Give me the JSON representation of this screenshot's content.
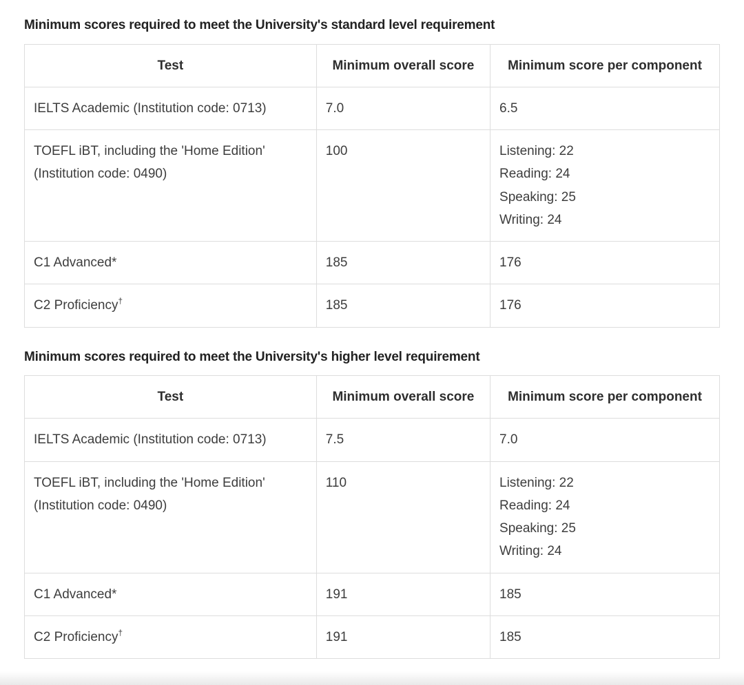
{
  "sections": [
    {
      "heading": "Minimum scores required to meet the University's standard level requirement",
      "table": {
        "columns": [
          "Test",
          "Minimum overall score",
          "Minimum score per component"
        ],
        "rows": [
          {
            "test": "IELTS Academic (Institution code: 0713)",
            "marker_sup": "",
            "overall": "7.0",
            "components": [
              "6.5"
            ]
          },
          {
            "test": "TOEFL iBT, including the 'Home Edition' (Institution code: 0490)",
            "marker_sup": "",
            "overall": "100",
            "components": [
              "Listening: 22",
              "Reading: 24",
              "Speaking: 25",
              "Writing: 24"
            ]
          },
          {
            "test": "C1 Advanced*",
            "marker_sup": "",
            "overall": "185",
            "components": [
              "176"
            ]
          },
          {
            "test": "C2 Proficiency",
            "marker_sup": "†",
            "overall": "185",
            "components": [
              "176"
            ]
          }
        ]
      }
    },
    {
      "heading": "Minimum scores required to meet the University's higher level requirement",
      "table": {
        "columns": [
          "Test",
          "Minimum overall score",
          "Minimum score per component"
        ],
        "rows": [
          {
            "test": "IELTS Academic (Institution code: 0713)",
            "marker_sup": "",
            "overall": "7.5",
            "components": [
              "7.0"
            ]
          },
          {
            "test": "TOEFL iBT, including the 'Home Edition' (Institution code: 0490)",
            "marker_sup": "",
            "overall": "110",
            "components": [
              "Listening: 22",
              "Reading: 24",
              "Speaking: 25",
              "Writing: 24"
            ]
          },
          {
            "test": "C1 Advanced*",
            "marker_sup": "",
            "overall": "191",
            "components": [
              "185"
            ]
          },
          {
            "test": "C2 Proficiency",
            "marker_sup": "†",
            "overall": "191",
            "components": [
              "185"
            ]
          }
        ]
      }
    }
  ]
}
